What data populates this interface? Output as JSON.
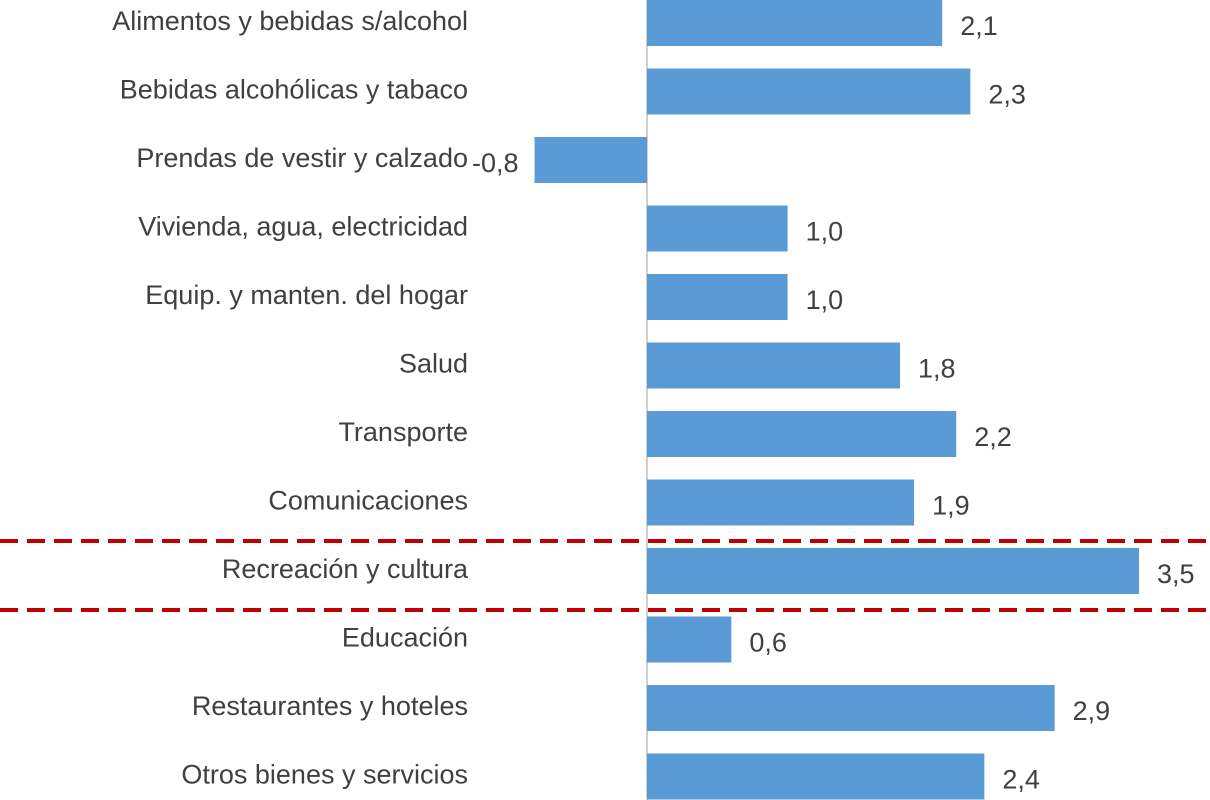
{
  "chart_data": {
    "type": "bar",
    "orientation": "horizontal",
    "color": "#5b9bd5",
    "categories": [
      "Alimentos y bebidas s/alcohol",
      "Bebidas alcohólicas y tabaco",
      "Prendas de vestir y calzado",
      "Vivienda, agua, electricidad",
      "Equip. y manten. del hogar",
      "Salud",
      "Transporte",
      "Comunicaciones",
      "Recreación y cultura",
      "Educación",
      "Restaurantes y hoteles",
      "Otros bienes y servicios"
    ],
    "values": [
      2.1,
      2.3,
      -0.8,
      1.0,
      1.0,
      1.8,
      2.2,
      1.9,
      3.5,
      0.6,
      2.9,
      2.4
    ],
    "value_labels": [
      "2,1",
      "2,3",
      "-0,8",
      "1,0",
      "1,0",
      "1,8",
      "2,2",
      "1,9",
      "3,5",
      "0,6",
      "2,9",
      "2,4"
    ]
  }
}
